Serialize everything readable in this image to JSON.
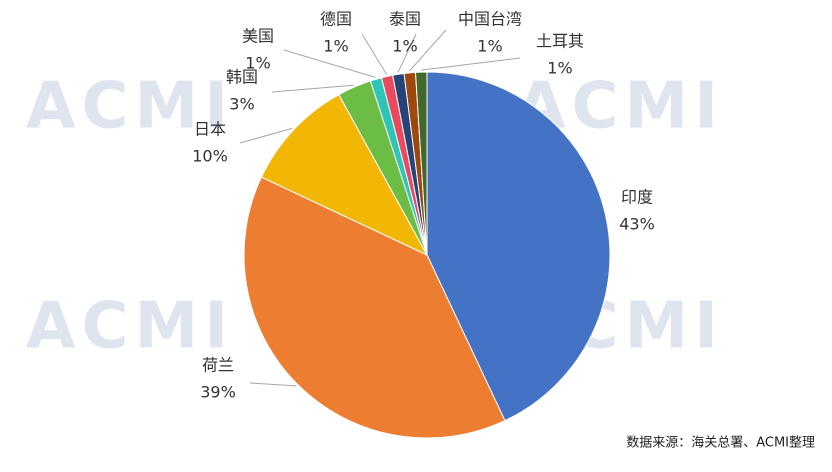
{
  "chart_data": {
    "type": "pie",
    "categories": [
      "印度",
      "荷兰",
      "日本",
      "韩国",
      "美国",
      "德国",
      "泰国",
      "中国台湾",
      "土耳其"
    ],
    "values": [
      43,
      39,
      10,
      3,
      1,
      1,
      1,
      1,
      1
    ],
    "value_labels": [
      "43%",
      "39%",
      "10%",
      "3%",
      "1%",
      "1%",
      "1%",
      "1%",
      "1%"
    ],
    "colors": [
      "#4472c4",
      "#ed7d31",
      "#f2b705",
      "#6bbd45",
      "#2ec4b6",
      "#e84a5f",
      "#264478",
      "#9e480e",
      "#43682b"
    ],
    "watermark": "ACMI",
    "source": "数据来源：海关总署、ACMI整理"
  }
}
